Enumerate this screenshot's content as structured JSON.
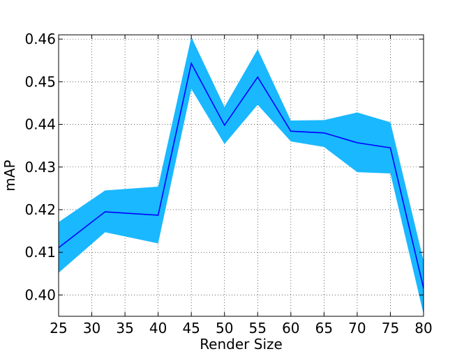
{
  "chart_data": {
    "type": "line",
    "title": "",
    "xlabel": "Render Size",
    "ylabel": "mAP",
    "xlim": [
      25,
      80
    ],
    "ylim": [
      0.395,
      0.461
    ],
    "grid": true,
    "grid_style": "dotted",
    "x_ticks": [
      25,
      30,
      35,
      40,
      45,
      50,
      55,
      60,
      65,
      70,
      75,
      80
    ],
    "x_tick_labels": [
      "25",
      "30",
      "35",
      "40",
      "45",
      "50",
      "55",
      "60",
      "65",
      "70",
      "75",
      "80"
    ],
    "y_ticks": [
      0.4,
      0.41,
      0.42,
      0.43,
      0.44,
      0.45,
      0.46
    ],
    "y_tick_labels": [
      "0.40",
      "0.41",
      "0.42",
      "0.43",
      "0.44",
      "0.45",
      "0.46"
    ],
    "x": [
      25,
      32,
      40,
      45,
      50,
      55,
      60,
      65,
      70,
      75,
      80
    ],
    "series": [
      {
        "values": [
          0.4111,
          0.4195,
          0.4187,
          0.4543,
          0.4398,
          0.4511,
          0.4384,
          0.438,
          0.4357,
          0.4345,
          0.4016
        ],
        "lower": [
          0.4052,
          0.4147,
          0.4121,
          0.4483,
          0.4354,
          0.4446,
          0.436,
          0.4347,
          0.4288,
          0.4285,
          0.3955
        ],
        "upper": [
          0.4171,
          0.4245,
          0.4254,
          0.4605,
          0.4441,
          0.4576,
          0.4409,
          0.441,
          0.4428,
          0.4405,
          0.408
        ],
        "line_color": "#0000ff",
        "band_color": "#1ab8ff"
      }
    ]
  }
}
